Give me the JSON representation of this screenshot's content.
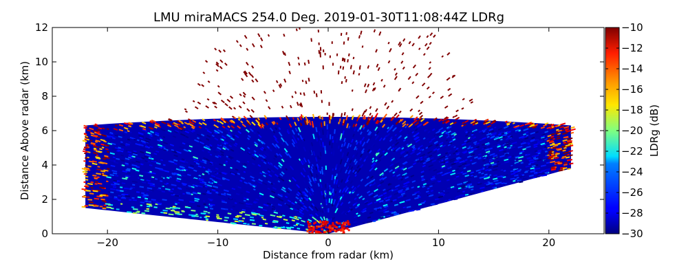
{
  "chart_data": {
    "type": "heatmap",
    "title": "LMU miraMACS 254.0 Deg. 2019-01-30T11:08:44Z  LDRg",
    "xlabel": "Distance from radar (km)",
    "ylabel": "Distance Above radar  (km)",
    "xlim": [
      -25,
      25
    ],
    "ylim": [
      0,
      12
    ],
    "x_ticks": [
      "−20",
      "−10",
      "0",
      "10",
      "20"
    ],
    "x_tick_values": [
      -20,
      -10,
      0,
      10,
      20
    ],
    "y_ticks": [
      "0",
      "2",
      "4",
      "6",
      "8",
      "10",
      "12"
    ],
    "y_tick_values": [
      0,
      2,
      4,
      6,
      8,
      10,
      12
    ],
    "colorbar": {
      "label": "LDRg (dB)",
      "range": [
        -30,
        -10
      ],
      "ticks": [
        "−30",
        "−28",
        "−26",
        "−24",
        "−22",
        "−20",
        "−18",
        "−16",
        "−14",
        "−12",
        "−10"
      ],
      "tick_values": [
        -30,
        -28,
        -26,
        -24,
        -22,
        -20,
        -18,
        -16,
        -14,
        -12,
        -10
      ],
      "colormap": "jet"
    },
    "scan": {
      "cloud_top_km": 6.5,
      "left_edge_km": -22,
      "right_edge_km": 22,
      "bottom_edge_left_km": 1.5,
      "bottom_edge_right_km": 3.8,
      "dominant_ldr_db": -28,
      "edge_ldr_db": -14,
      "sparse_ldr_db": -10
    },
    "grid": false
  }
}
